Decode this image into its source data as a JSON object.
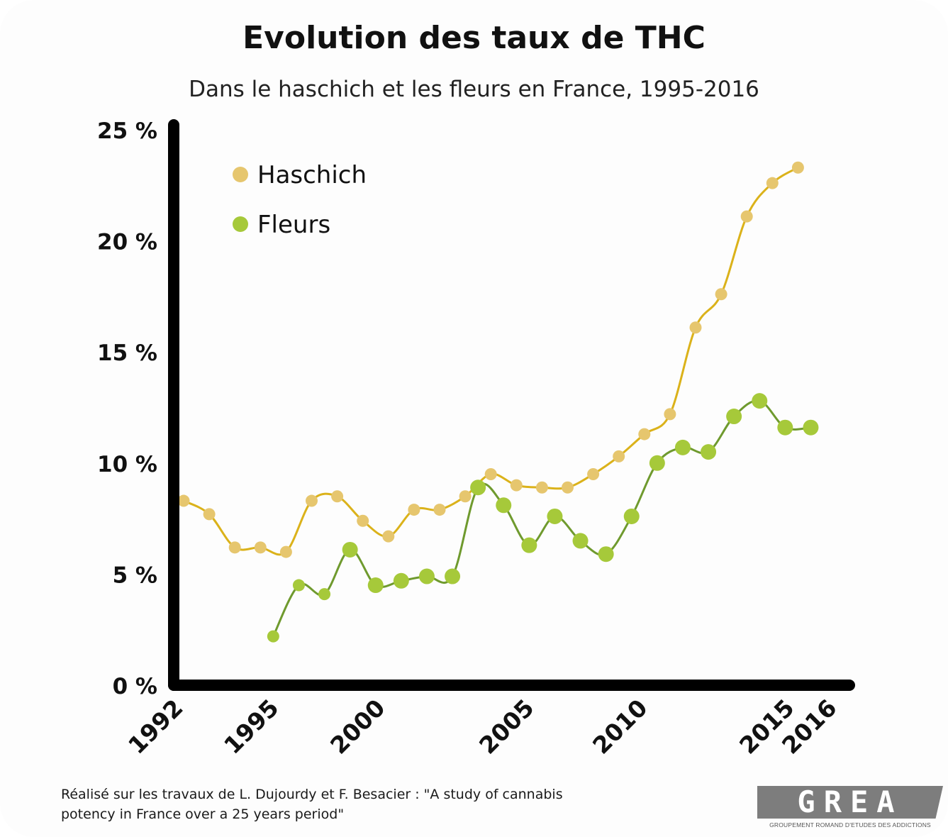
{
  "title": "Evolution des taux de THC",
  "subtitle": "Dans le haschich et les fleurs en France, 1995-2016",
  "footnote_line1": "Réalisé sur les travaux de L. Dujourdy et F. Besacier : \"A study of cannabis",
  "footnote_line2": "potency in France over a 25 years period\"",
  "logo": {
    "word": "GREA",
    "tagline": "GROUPEMENT ROMAND D'ETUDES DES ADDICTIONS"
  },
  "chart_data": {
    "type": "line",
    "title": "Evolution des taux de THC",
    "subtitle": "Dans le haschich et les fleurs en France, 1995-2016",
    "xlabel": "",
    "ylabel": "",
    "ylim": [
      0,
      25
    ],
    "xlim": [
      1992,
      2016
    ],
    "x_ticks": [
      "1992",
      "1995",
      "2000",
      "2005",
      "2010",
      "2015",
      "2016"
    ],
    "y_ticks": [
      "0 %",
      "5 %",
      "10 %",
      "15 %",
      "20 %",
      "25 %"
    ],
    "grid": false,
    "legend_position": "top-left",
    "series": [
      {
        "name": "Haschich",
        "color": "#e6c66e",
        "line_color": "#dbb21a",
        "x": [
          1992,
          1993,
          1994,
          1995,
          1996,
          1997,
          1998,
          1999,
          2000,
          2001,
          2002,
          2003,
          2004,
          2005,
          2006,
          2007,
          2008,
          2009,
          2010,
          2011,
          2012,
          2013,
          2014,
          2015,
          2016
        ],
        "values": [
          8.3,
          7.7,
          6.2,
          6.2,
          6.0,
          8.3,
          8.5,
          7.4,
          6.7,
          7.9,
          7.9,
          8.5,
          9.5,
          9.0,
          8.9,
          8.9,
          9.5,
          10.3,
          11.3,
          12.2,
          16.1,
          17.6,
          21.1,
          22.6,
          23.3
        ]
      },
      {
        "name": "Fleurs",
        "color": "#a6c93a",
        "line_color": "#6f9a2e",
        "x": [
          1995.5,
          1996.5,
          1997.5,
          1998.5,
          1999.5,
          2000.5,
          2001.5,
          2002.5,
          2003.5,
          2004.5,
          2005.5,
          2006.5,
          2007.5,
          2008.5,
          2009.5,
          2010.5,
          2011.5,
          2012.5,
          2013.5,
          2014.5,
          2015.5,
          2016.5
        ],
        "values": [
          2.2,
          4.5,
          4.1,
          6.1,
          4.5,
          4.7,
          4.9,
          4.9,
          8.9,
          8.1,
          6.3,
          7.6,
          6.5,
          5.9,
          7.6,
          10.0,
          10.7,
          10.5,
          12.1,
          12.8,
          11.6,
          11.6
        ]
      }
    ]
  }
}
